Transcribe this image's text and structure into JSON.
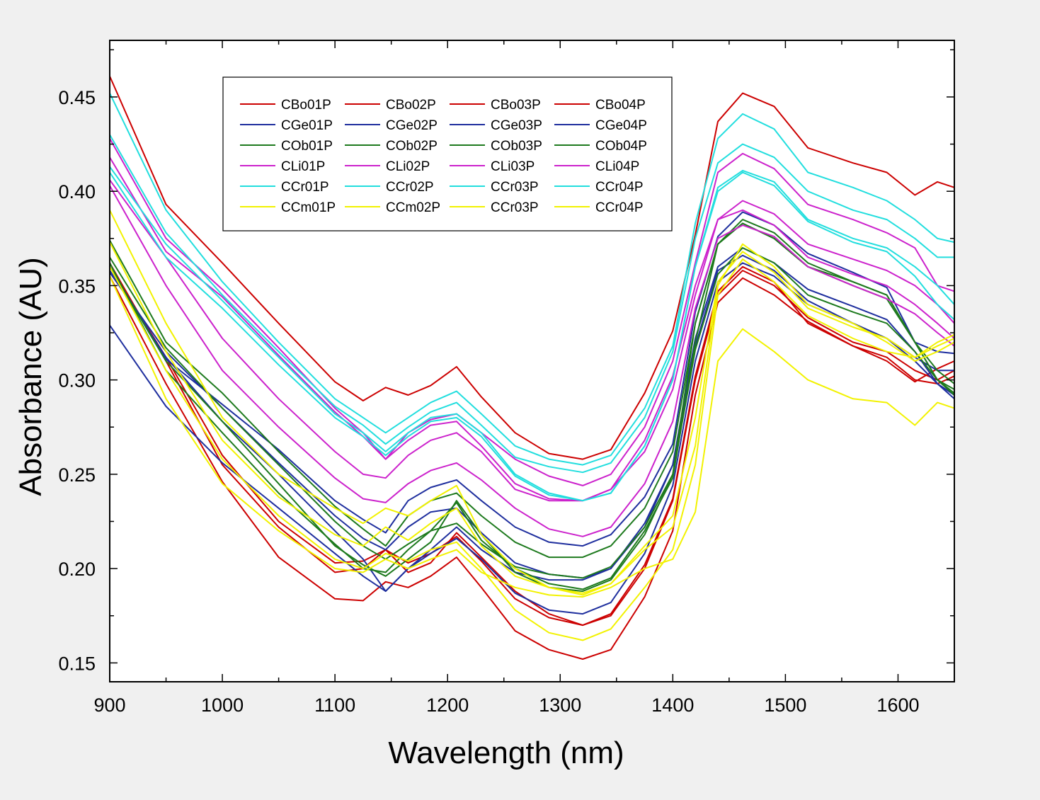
{
  "chart_data": {
    "type": "line",
    "xlabel": "Wavelength (nm)",
    "ylabel": "Absorbance (AU)",
    "xlim": [
      900,
      1650
    ],
    "ylim": [
      0.14,
      0.48
    ],
    "x_ticks": [
      "900",
      "1000",
      "1100",
      "1200",
      "1300",
      "1400",
      "1500",
      "1600"
    ],
    "y_ticks": [
      "0.15",
      "0.20",
      "0.25",
      "0.30",
      "0.35",
      "0.40",
      "0.45"
    ],
    "grid": false,
    "legend_position": "top-left",
    "legend_columns": 4,
    "x": [
      900,
      950,
      1000,
      1050,
      1100,
      1125,
      1145,
      1165,
      1185,
      1208,
      1230,
      1260,
      1290,
      1320,
      1345,
      1375,
      1400,
      1420,
      1440,
      1462,
      1490,
      1520,
      1560,
      1590,
      1615,
      1635,
      1650
    ],
    "series": [
      {
        "name": "CBo01P",
        "color": "#cc0000",
        "values": [
          0.461,
          0.393,
          0.362,
          0.33,
          0.299,
          0.289,
          0.296,
          0.292,
          0.297,
          0.307,
          0.291,
          0.272,
          0.261,
          0.258,
          0.263,
          0.293,
          0.326,
          0.377,
          0.437,
          0.452,
          0.445,
          0.423,
          0.415,
          0.41,
          0.398,
          0.405,
          0.402
        ]
      },
      {
        "name": "CBo02P",
        "color": "#cc0000",
        "values": [
          0.362,
          0.31,
          0.255,
          0.222,
          0.198,
          0.2,
          0.21,
          0.198,
          0.203,
          0.219,
          0.206,
          0.188,
          0.176,
          0.17,
          0.176,
          0.202,
          0.237,
          0.302,
          0.347,
          0.36,
          0.352,
          0.33,
          0.318,
          0.31,
          0.299,
          0.306,
          0.31
        ]
      },
      {
        "name": "CBo03P",
        "color": "#cc0000",
        "values": [
          0.355,
          0.298,
          0.246,
          0.206,
          0.184,
          0.183,
          0.193,
          0.19,
          0.196,
          0.206,
          0.19,
          0.167,
          0.157,
          0.152,
          0.157,
          0.185,
          0.22,
          0.292,
          0.341,
          0.354,
          0.345,
          0.331,
          0.318,
          0.312,
          0.3,
          0.298,
          0.302
        ]
      },
      {
        "name": "CBo04P",
        "color": "#cc0000",
        "values": [
          0.36,
          0.312,
          0.26,
          0.225,
          0.203,
          0.204,
          0.21,
          0.203,
          0.208,
          0.217,
          0.204,
          0.184,
          0.174,
          0.17,
          0.175,
          0.2,
          0.236,
          0.3,
          0.345,
          0.358,
          0.35,
          0.333,
          0.32,
          0.315,
          0.305,
          0.3,
          0.305
        ]
      },
      {
        "name": "CGe01P",
        "color": "#1f2f9e",
        "values": [
          0.329,
          0.286,
          0.256,
          0.232,
          0.208,
          0.196,
          0.188,
          0.2,
          0.208,
          0.216,
          0.205,
          0.187,
          0.178,
          0.176,
          0.182,
          0.208,
          0.244,
          0.31,
          0.352,
          0.362,
          0.355,
          0.34,
          0.33,
          0.322,
          0.312,
          0.305,
          0.305
        ]
      },
      {
        "name": "CGe02P",
        "color": "#1f2f9e",
        "values": [
          0.36,
          0.311,
          0.287,
          0.263,
          0.236,
          0.226,
          0.219,
          0.236,
          0.243,
          0.247,
          0.236,
          0.222,
          0.214,
          0.212,
          0.218,
          0.238,
          0.266,
          0.336,
          0.376,
          0.389,
          0.382,
          0.367,
          0.357,
          0.349,
          0.32,
          0.315,
          0.314
        ]
      },
      {
        "name": "CGe03P",
        "color": "#1f2f9e",
        "values": [
          0.357,
          0.315,
          0.285,
          0.256,
          0.228,
          0.216,
          0.21,
          0.222,
          0.23,
          0.232,
          0.219,
          0.203,
          0.197,
          0.195,
          0.2,
          0.224,
          0.255,
          0.322,
          0.36,
          0.37,
          0.362,
          0.348,
          0.339,
          0.332,
          0.315,
          0.298,
          0.292
        ]
      },
      {
        "name": "CGe04P",
        "color": "#1f2f9e",
        "values": [
          0.358,
          0.312,
          0.278,
          0.25,
          0.22,
          0.205,
          0.188,
          0.2,
          0.21,
          0.222,
          0.21,
          0.198,
          0.194,
          0.194,
          0.2,
          0.222,
          0.255,
          0.318,
          0.358,
          0.366,
          0.358,
          0.342,
          0.33,
          0.322,
          0.31,
          0.298,
          0.29
        ]
      },
      {
        "name": "COb01P",
        "color": "#1e7a1e",
        "values": [
          0.374,
          0.32,
          0.293,
          0.262,
          0.233,
          0.221,
          0.212,
          0.228,
          0.236,
          0.24,
          0.228,
          0.214,
          0.206,
          0.206,
          0.212,
          0.232,
          0.262,
          0.33,
          0.372,
          0.383,
          0.375,
          0.36,
          0.352,
          0.345,
          0.32,
          0.305,
          0.298
        ]
      },
      {
        "name": "COb02P",
        "color": "#1e7a1e",
        "values": [
          0.365,
          0.317,
          0.285,
          0.255,
          0.225,
          0.212,
          0.205,
          0.213,
          0.22,
          0.224,
          0.213,
          0.201,
          0.197,
          0.195,
          0.201,
          0.222,
          0.25,
          0.316,
          0.356,
          0.37,
          0.362,
          0.345,
          0.336,
          0.33,
          0.315,
          0.3,
          0.295
        ]
      },
      {
        "name": "COb03P",
        "color": "#1e7a1e",
        "values": [
          0.36,
          0.31,
          0.278,
          0.245,
          0.212,
          0.202,
          0.196,
          0.205,
          0.214,
          0.236,
          0.218,
          0.198,
          0.19,
          0.188,
          0.194,
          0.218,
          0.25,
          0.33,
          0.372,
          0.385,
          0.378,
          0.362,
          0.352,
          0.345,
          0.32,
          0.3,
          0.293
        ]
      },
      {
        "name": "COb04P",
        "color": "#1e7a1e",
        "values": [
          0.362,
          0.305,
          0.272,
          0.24,
          0.213,
          0.2,
          0.198,
          0.21,
          0.22,
          0.235,
          0.215,
          0.2,
          0.192,
          0.189,
          0.195,
          0.22,
          0.248,
          0.32,
          0.372,
          0.383,
          0.375,
          0.36,
          0.35,
          0.343,
          0.32,
          0.3,
          0.292
        ]
      },
      {
        "name": "CLi01P",
        "color": "#cc22cc",
        "values": [
          0.428,
          0.375,
          0.348,
          0.317,
          0.285,
          0.272,
          0.258,
          0.272,
          0.279,
          0.282,
          0.272,
          0.258,
          0.249,
          0.244,
          0.25,
          0.275,
          0.31,
          0.362,
          0.41,
          0.42,
          0.412,
          0.393,
          0.385,
          0.378,
          0.37,
          0.35,
          0.347
        ]
      },
      {
        "name": "CLi02P",
        "color": "#cc22cc",
        "values": [
          0.418,
          0.368,
          0.344,
          0.313,
          0.283,
          0.27,
          0.258,
          0.268,
          0.276,
          0.278,
          0.265,
          0.245,
          0.237,
          0.236,
          0.242,
          0.268,
          0.302,
          0.35,
          0.385,
          0.395,
          0.388,
          0.372,
          0.364,
          0.358,
          0.35,
          0.34,
          0.33
        ]
      },
      {
        "name": "CLi03P",
        "color": "#cc22cc",
        "values": [
          0.406,
          0.365,
          0.322,
          0.29,
          0.262,
          0.25,
          0.248,
          0.26,
          0.268,
          0.272,
          0.262,
          0.242,
          0.236,
          0.236,
          0.242,
          0.262,
          0.295,
          0.345,
          0.385,
          0.39,
          0.382,
          0.365,
          0.356,
          0.35,
          0.34,
          0.33,
          0.322
        ]
      },
      {
        "name": "CLi04P",
        "color": "#cc22cc",
        "values": [
          0.403,
          0.35,
          0.305,
          0.275,
          0.248,
          0.237,
          0.235,
          0.245,
          0.252,
          0.256,
          0.247,
          0.232,
          0.221,
          0.217,
          0.222,
          0.245,
          0.278,
          0.338,
          0.375,
          0.382,
          0.376,
          0.36,
          0.35,
          0.343,
          0.335,
          0.325,
          0.318
        ]
      },
      {
        "name": "CCr01P",
        "color": "#22dede",
        "values": [
          0.452,
          0.39,
          0.352,
          0.32,
          0.29,
          0.28,
          0.272,
          0.28,
          0.288,
          0.294,
          0.282,
          0.265,
          0.258,
          0.255,
          0.26,
          0.285,
          0.318,
          0.383,
          0.428,
          0.441,
          0.433,
          0.41,
          0.402,
          0.395,
          0.385,
          0.375,
          0.373
        ]
      },
      {
        "name": "CCr02P",
        "color": "#22dede",
        "values": [
          0.43,
          0.378,
          0.345,
          0.315,
          0.286,
          0.276,
          0.266,
          0.275,
          0.283,
          0.288,
          0.276,
          0.259,
          0.254,
          0.251,
          0.256,
          0.28,
          0.315,
          0.375,
          0.415,
          0.425,
          0.418,
          0.4,
          0.39,
          0.385,
          0.375,
          0.365,
          0.365
        ]
      },
      {
        "name": "CCr03P",
        "color": "#22dede",
        "values": [
          0.413,
          0.372,
          0.342,
          0.312,
          0.282,
          0.272,
          0.262,
          0.272,
          0.28,
          0.282,
          0.272,
          0.25,
          0.24,
          0.236,
          0.24,
          0.265,
          0.3,
          0.36,
          0.402,
          0.411,
          0.405,
          0.385,
          0.375,
          0.37,
          0.36,
          0.35,
          0.34
        ]
      },
      {
        "name": "CCr04P",
        "color": "#22dede",
        "values": [
          0.41,
          0.365,
          0.338,
          0.308,
          0.28,
          0.27,
          0.26,
          0.27,
          0.278,
          0.28,
          0.27,
          0.249,
          0.239,
          0.236,
          0.24,
          0.265,
          0.3,
          0.36,
          0.4,
          0.41,
          0.403,
          0.384,
          0.373,
          0.368,
          0.355,
          0.34,
          0.332
        ]
      },
      {
        "name": "CCm01P",
        "color": "#f2f200",
        "values": [
          0.39,
          0.33,
          0.28,
          0.25,
          0.232,
          0.224,
          0.232,
          0.228,
          0.236,
          0.244,
          0.218,
          0.2,
          0.19,
          0.186,
          0.192,
          0.21,
          0.222,
          0.265,
          0.35,
          0.372,
          0.36,
          0.34,
          0.33,
          0.32,
          0.31,
          0.315,
          0.32
        ]
      },
      {
        "name": "CCm02P",
        "color": "#f2f200",
        "values": [
          0.373,
          0.315,
          0.268,
          0.238,
          0.218,
          0.212,
          0.222,
          0.215,
          0.224,
          0.232,
          0.212,
          0.196,
          0.19,
          0.187,
          0.192,
          0.212,
          0.228,
          0.28,
          0.352,
          0.368,
          0.357,
          0.338,
          0.328,
          0.322,
          0.312,
          0.32,
          0.324
        ]
      },
      {
        "name": "CCr03P",
        "color": "#f2f200",
        "values": [
          0.36,
          0.305,
          0.258,
          0.228,
          0.205,
          0.2,
          0.208,
          0.204,
          0.21,
          0.214,
          0.2,
          0.178,
          0.166,
          0.162,
          0.168,
          0.19,
          0.21,
          0.255,
          0.345,
          0.364,
          0.352,
          0.334,
          0.322,
          0.315,
          0.312,
          0.318,
          0.322
        ]
      },
      {
        "name": "CCr04P",
        "color": "#f2f200",
        "values": [
          0.355,
          0.29,
          0.245,
          0.22,
          0.2,
          0.198,
          0.205,
          0.2,
          0.205,
          0.21,
          0.198,
          0.19,
          0.186,
          0.185,
          0.19,
          0.2,
          0.205,
          0.23,
          0.31,
          0.327,
          0.315,
          0.3,
          0.29,
          0.288,
          0.276,
          0.288,
          0.285
        ]
      }
    ]
  }
}
